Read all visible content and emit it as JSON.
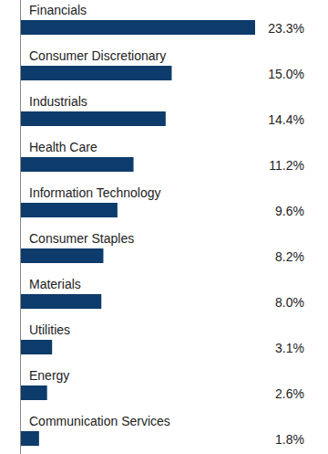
{
  "chart_data": {
    "type": "bar",
    "orientation": "horizontal",
    "categories": [
      "Financials",
      "Consumer Discretionary",
      "Industrials",
      "Health Care",
      "Information Technology",
      "Consumer Staples",
      "Materials",
      "Utilities",
      "Energy",
      "Communication Services"
    ],
    "values": [
      23.3,
      15.0,
      14.4,
      11.2,
      9.6,
      8.2,
      8.0,
      3.1,
      2.6,
      1.8
    ],
    "value_labels": [
      "23.3%",
      "15.0%",
      "14.4%",
      "11.2%",
      "9.6%",
      "8.2%",
      "8.0%",
      "3.1%",
      "2.6%",
      "1.8%"
    ],
    "data_labels": true,
    "tick_labels": false,
    "grid": false,
    "color": "#0d3b6b"
  }
}
